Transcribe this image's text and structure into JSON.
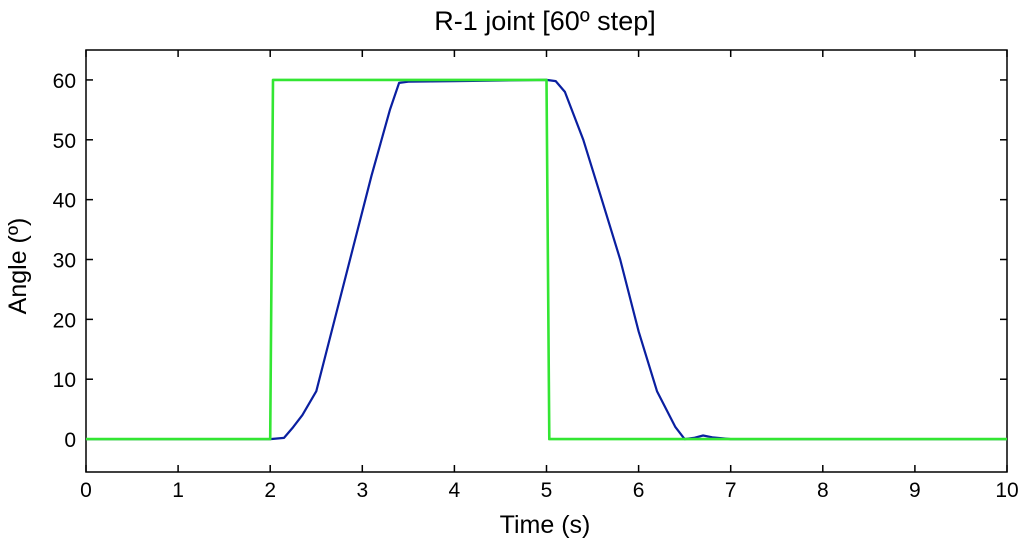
{
  "chart_data": {
    "type": "line",
    "title": "R-1 joint [60º step]",
    "xlabel": "Time (s)",
    "ylabel": "Angle (º)",
    "xlim": [
      0,
      10
    ],
    "ylim": [
      -5.5,
      65
    ],
    "xticks": [
      0,
      1,
      2,
      3,
      4,
      5,
      6,
      7,
      8,
      9,
      10
    ],
    "yticks": [
      0,
      10,
      20,
      30,
      40,
      50,
      60
    ],
    "grid": false,
    "legend": "none",
    "series": [
      {
        "color": "#0a1fa0",
        "x": [
          0,
          2.0,
          2.15,
          2.25,
          2.35,
          2.5,
          2.7,
          2.9,
          3.1,
          3.3,
          3.4,
          3.5,
          4.0,
          4.5,
          5.0,
          5.1,
          5.2,
          5.4,
          5.6,
          5.8,
          6.0,
          6.2,
          6.4,
          6.5,
          6.6,
          6.7,
          6.8,
          7.0,
          10
        ],
        "y": [
          0,
          0,
          0.2,
          2.0,
          4.0,
          8.0,
          20.0,
          32.0,
          44.0,
          55.0,
          59.5,
          59.7,
          59.8,
          59.9,
          60.0,
          59.8,
          58.0,
          50.0,
          40.0,
          30.0,
          18.0,
          8.0,
          2.0,
          0.0,
          0.2,
          0.6,
          0.3,
          0.0,
          0.0
        ]
      },
      {
        "color": "#33e633",
        "x": [
          0,
          2.0,
          2.03,
          5.0,
          5.03,
          10
        ],
        "y": [
          0,
          0,
          60,
          60,
          0,
          0
        ]
      }
    ]
  }
}
